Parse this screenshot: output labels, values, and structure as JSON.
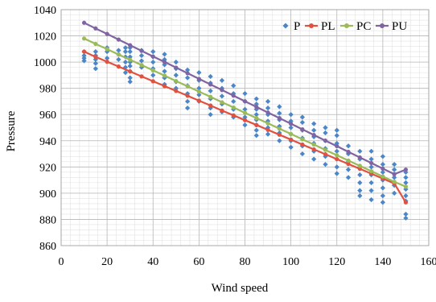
{
  "chart_data": {
    "type": "scatter",
    "title": "",
    "xlabel": "Wind speed",
    "ylabel": "Pressure",
    "xlim": [
      0,
      160
    ],
    "ylim": [
      860,
      1040
    ],
    "x_ticks": [
      0,
      20,
      40,
      60,
      80,
      100,
      120,
      140,
      160
    ],
    "y_ticks": [
      860,
      880,
      900,
      920,
      940,
      960,
      980,
      1000,
      1020,
      1040
    ],
    "grid": true,
    "legend_position": "top-right",
    "series": [
      {
        "name": "P",
        "kind": "points",
        "color": "#4a86c8",
        "points": [
          [
            10,
            1001
          ],
          [
            10,
            1003
          ],
          [
            10,
            1005
          ],
          [
            10,
            1008
          ],
          [
            15,
            995
          ],
          [
            15,
            999
          ],
          [
            15,
            1002
          ],
          [
            15,
            1005
          ],
          [
            15,
            1008
          ],
          [
            20,
            1003
          ],
          [
            20,
            1008
          ],
          [
            20,
            1011
          ],
          [
            25,
            1002
          ],
          [
            25,
            1006
          ],
          [
            25,
            1009
          ],
          [
            28,
            992
          ],
          [
            28,
            996
          ],
          [
            28,
            1000
          ],
          [
            28,
            1004
          ],
          [
            28,
            1008
          ],
          [
            28,
            1011
          ],
          [
            30,
            985
          ],
          [
            30,
            988
          ],
          [
            30,
            993
          ],
          [
            30,
            997
          ],
          [
            30,
            1000
          ],
          [
            30,
            1004
          ],
          [
            30,
            1008
          ],
          [
            30,
            1011
          ],
          [
            35,
            996
          ],
          [
            35,
            1001
          ],
          [
            35,
            1005
          ],
          [
            35,
            1009
          ],
          [
            40,
            990
          ],
          [
            40,
            995
          ],
          [
            40,
            1000
          ],
          [
            40,
            1004
          ],
          [
            40,
            1008
          ],
          [
            45,
            983
          ],
          [
            45,
            988
          ],
          [
            45,
            993
          ],
          [
            45,
            998
          ],
          [
            45,
            1002
          ],
          [
            45,
            1006
          ],
          [
            50,
            980
          ],
          [
            50,
            985
          ],
          [
            50,
            990
          ],
          [
            50,
            995
          ],
          [
            50,
            1000
          ],
          [
            55,
            965
          ],
          [
            55,
            970
          ],
          [
            55,
            976
          ],
          [
            55,
            982
          ],
          [
            55,
            988
          ],
          [
            55,
            994
          ],
          [
            60,
            970
          ],
          [
            60,
            975
          ],
          [
            60,
            980
          ],
          [
            60,
            986
          ],
          [
            60,
            992
          ],
          [
            65,
            960
          ],
          [
            65,
            965
          ],
          [
            65,
            972
          ],
          [
            65,
            978
          ],
          [
            65,
            984
          ],
          [
            65,
            989
          ],
          [
            70,
            962
          ],
          [
            70,
            968
          ],
          [
            70,
            974
          ],
          [
            70,
            980
          ],
          [
            70,
            986
          ],
          [
            75,
            958
          ],
          [
            75,
            964
          ],
          [
            75,
            970
          ],
          [
            75,
            976
          ],
          [
            75,
            982
          ],
          [
            80,
            952
          ],
          [
            80,
            958
          ],
          [
            80,
            964
          ],
          [
            80,
            970
          ],
          [
            80,
            976
          ],
          [
            85,
            944
          ],
          [
            85,
            948
          ],
          [
            85,
            952
          ],
          [
            85,
            956
          ],
          [
            85,
            960
          ],
          [
            85,
            964
          ],
          [
            85,
            968
          ],
          [
            85,
            972
          ],
          [
            90,
            945
          ],
          [
            90,
            950
          ],
          [
            90,
            955
          ],
          [
            90,
            960
          ],
          [
            90,
            965
          ],
          [
            90,
            970
          ],
          [
            95,
            940
          ],
          [
            95,
            946
          ],
          [
            95,
            951
          ],
          [
            95,
            956
          ],
          [
            95,
            961
          ],
          [
            95,
            966
          ],
          [
            100,
            935
          ],
          [
            100,
            940
          ],
          [
            100,
            945
          ],
          [
            100,
            950
          ],
          [
            100,
            955
          ],
          [
            100,
            960
          ],
          [
            105,
            930
          ],
          [
            105,
            936
          ],
          [
            105,
            942
          ],
          [
            105,
            948
          ],
          [
            105,
            954
          ],
          [
            105,
            958
          ],
          [
            110,
            926
          ],
          [
            110,
            932
          ],
          [
            110,
            938
          ],
          [
            110,
            943
          ],
          [
            110,
            948
          ],
          [
            110,
            953
          ],
          [
            115,
            922
          ],
          [
            115,
            928
          ],
          [
            115,
            934
          ],
          [
            115,
            940
          ],
          [
            115,
            946
          ],
          [
            115,
            950
          ],
          [
            120,
            915
          ],
          [
            120,
            920
          ],
          [
            120,
            926
          ],
          [
            120,
            932
          ],
          [
            120,
            938
          ],
          [
            120,
            944
          ],
          [
            120,
            948
          ],
          [
            125,
            912
          ],
          [
            125,
            918
          ],
          [
            125,
            924
          ],
          [
            125,
            930
          ],
          [
            125,
            936
          ],
          [
            130,
            898
          ],
          [
            130,
            902
          ],
          [
            130,
            908
          ],
          [
            130,
            914
          ],
          [
            130,
            920
          ],
          [
            130,
            926
          ],
          [
            130,
            932
          ],
          [
            135,
            895
          ],
          [
            135,
            902
          ],
          [
            135,
            908
          ],
          [
            135,
            914
          ],
          [
            135,
            920
          ],
          [
            135,
            926
          ],
          [
            135,
            932
          ],
          [
            140,
            893
          ],
          [
            140,
            898
          ],
          [
            140,
            904
          ],
          [
            140,
            910
          ],
          [
            140,
            916
          ],
          [
            140,
            922
          ],
          [
            140,
            928
          ],
          [
            145,
            900
          ],
          [
            145,
            906
          ],
          [
            145,
            912
          ],
          [
            145,
            918
          ],
          [
            145,
            922
          ],
          [
            150,
            881
          ],
          [
            150,
            884
          ],
          [
            150,
            894
          ],
          [
            150,
            898
          ],
          [
            150,
            903
          ],
          [
            150,
            908
          ],
          [
            150,
            912
          ],
          [
            150,
            916
          ]
        ]
      },
      {
        "name": "PL",
        "kind": "line",
        "color": "#e0513f",
        "x": [
          10,
          15,
          20,
          25,
          30,
          35,
          40,
          45,
          50,
          55,
          60,
          65,
          70,
          75,
          80,
          85,
          90,
          95,
          100,
          105,
          110,
          115,
          120,
          125,
          130,
          135,
          140,
          145,
          150
        ],
        "y": [
          1008,
          1004,
          1000.3,
          996.6,
          992.9,
          989.1,
          985.4,
          981.7,
          978,
          974.3,
          970.6,
          966.9,
          963.1,
          959.4,
          955.7,
          952,
          948.3,
          944.6,
          940.9,
          937.1,
          933.4,
          929.7,
          926,
          922.3,
          918.6,
          914.9,
          911.1,
          907.4,
          893
        ]
      },
      {
        "name": "PC",
        "kind": "line",
        "color": "#9bbb59",
        "x": [
          10,
          15,
          20,
          25,
          30,
          35,
          40,
          45,
          50,
          55,
          60,
          65,
          70,
          75,
          80,
          85,
          90,
          95,
          100,
          105,
          110,
          115,
          120,
          125,
          130,
          135,
          140,
          145,
          150
        ],
        "y": [
          1018,
          1013.9,
          1009.9,
          1005.8,
          1001.8,
          997.8,
          993.7,
          989.7,
          985.6,
          981.6,
          977.5,
          973.5,
          969.4,
          965.4,
          961.3,
          957.3,
          953.3,
          949.2,
          945.2,
          941.1,
          937.1,
          933,
          929,
          924.9,
          920.9,
          916.8,
          912.8,
          908.7,
          905
        ]
      },
      {
        "name": "PU",
        "kind": "line",
        "color": "#8064a2",
        "x": [
          10,
          15,
          20,
          25,
          30,
          35,
          40,
          45,
          50,
          55,
          60,
          65,
          70,
          75,
          80,
          85,
          90,
          95,
          100,
          105,
          110,
          115,
          120,
          125,
          130,
          135,
          140,
          145,
          150
        ],
        "y": [
          1030,
          1025.7,
          1021.5,
          1017.2,
          1012.9,
          1008.6,
          1004.3,
          1000.1,
          995.8,
          991.5,
          987.2,
          982.9,
          978.7,
          974.4,
          970.1,
          965.8,
          961.5,
          957.3,
          953,
          948.7,
          944.4,
          940.1,
          935.9,
          931.6,
          927.3,
          923,
          918.7,
          914.5,
          918
        ]
      }
    ]
  }
}
